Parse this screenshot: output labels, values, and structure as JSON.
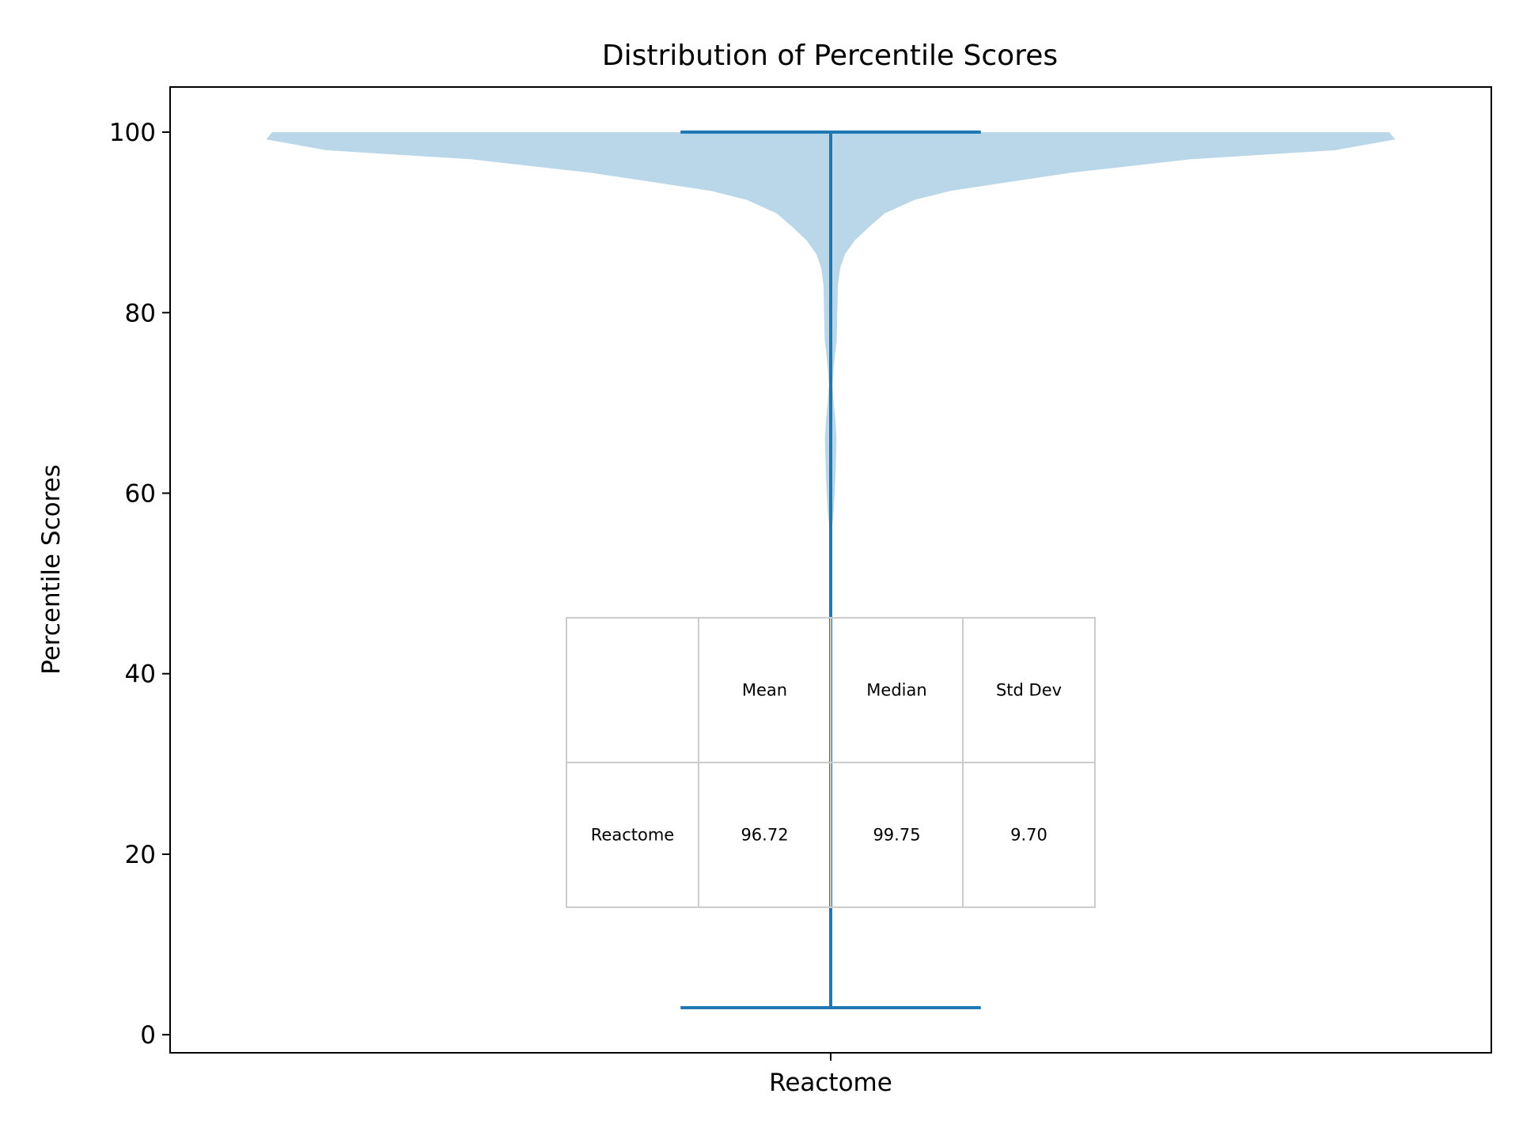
{
  "chart_data": {
    "type": "violin",
    "title": "Distribution of Percentile Scores",
    "xlabel": "",
    "ylabel": "Percentile Scores",
    "categories": [
      "Reactome"
    ],
    "ylim": [
      -2,
      105
    ],
    "yticks": [
      0,
      20,
      40,
      60,
      80,
      100
    ],
    "grid": false,
    "colors": {
      "body": "#bad6e9",
      "lines": "#1f77b4",
      "table_border": "#cccccc",
      "axes": "#000000"
    },
    "violins": [
      {
        "name": "Reactome",
        "min": 3.0,
        "max": 100.0,
        "max_half_width": 0.47,
        "profile": [
          {
            "y": 3.0,
            "w": 0.0
          },
          {
            "y": 56.0,
            "w": 0.001
          },
          {
            "y": 58.0,
            "w": 0.0025
          },
          {
            "y": 62.0,
            "w": 0.004
          },
          {
            "y": 66.0,
            "w": 0.0048
          },
          {
            "y": 68.0,
            "w": 0.004
          },
          {
            "y": 70.0,
            "w": 0.0025
          },
          {
            "y": 72.0,
            "w": 0.0015
          },
          {
            "y": 74.0,
            "w": 0.0025
          },
          {
            "y": 77.0,
            "w": 0.005
          },
          {
            "y": 80.0,
            "w": 0.0055
          },
          {
            "y": 83.0,
            "w": 0.006
          },
          {
            "y": 85.0,
            "w": 0.008
          },
          {
            "y": 86.5,
            "w": 0.012
          },
          {
            "y": 88.0,
            "w": 0.02
          },
          {
            "y": 89.5,
            "w": 0.032
          },
          {
            "y": 91.0,
            "w": 0.045
          },
          {
            "y": 92.5,
            "w": 0.07
          },
          {
            "y": 93.5,
            "w": 0.1
          },
          {
            "y": 94.5,
            "w": 0.15
          },
          {
            "y": 95.5,
            "w": 0.2
          },
          {
            "y": 97.0,
            "w": 0.3
          },
          {
            "y": 98.0,
            "w": 0.42
          },
          {
            "y": 99.2,
            "w": 0.47
          },
          {
            "y": 100.0,
            "w": 0.465
          }
        ]
      }
    ],
    "table": {
      "columns": [
        "",
        "Mean",
        "Median",
        "Std Dev"
      ],
      "rows": [
        [
          "Reactome",
          "96.72",
          "99.75",
          "9.70"
        ]
      ]
    }
  }
}
